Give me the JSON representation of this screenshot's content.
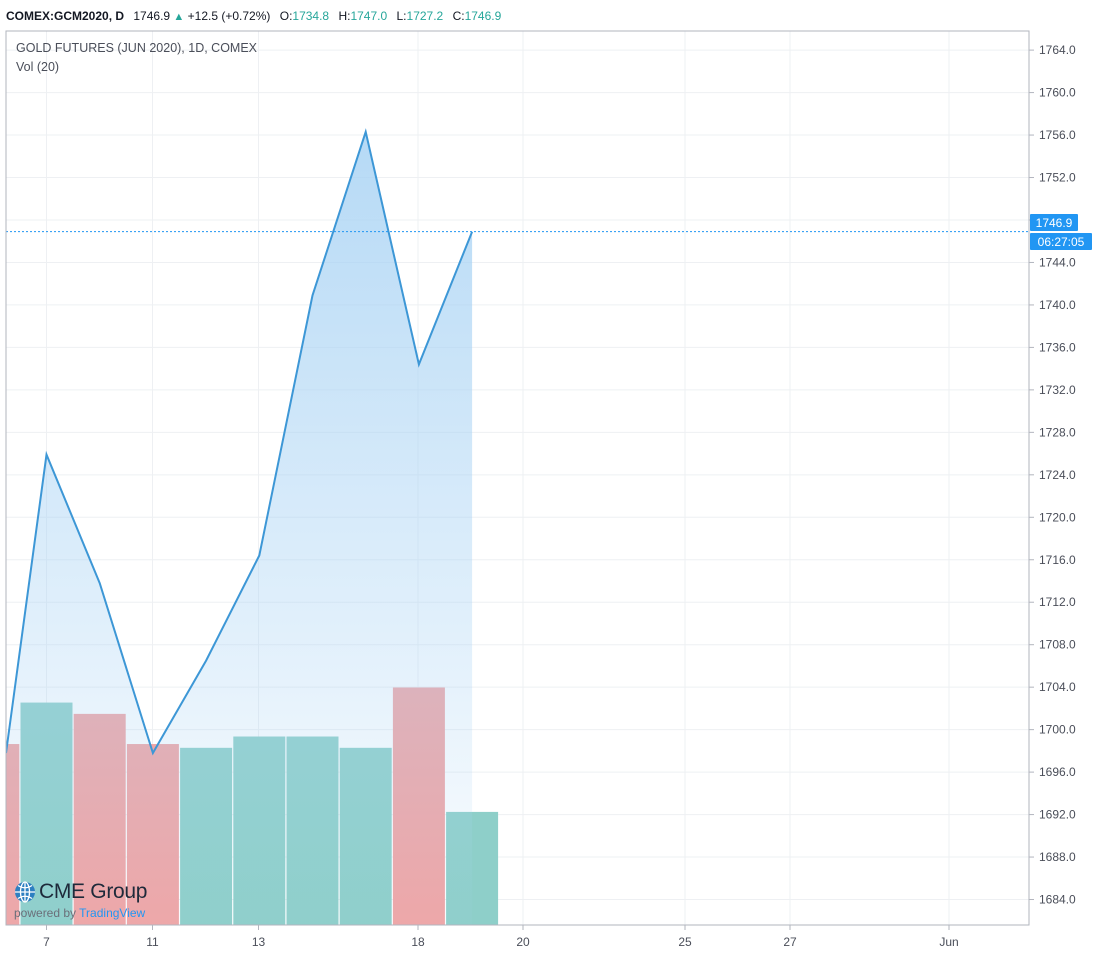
{
  "header": {
    "symbol": "COMEX:GCM2020, D",
    "last": "1746.9",
    "change": "+12.5 (+0.72%)",
    "open_label": "O:",
    "open": "1734.8",
    "high_label": "H:",
    "high": "1747.0",
    "low_label": "L:",
    "low": "1727.2",
    "close_label": "C:",
    "close": "1746.9",
    "up_color": "#26a69a"
  },
  "legend": {
    "title": "GOLD FUTURES (JUN 2020), 1D, COMEX",
    "volume": "Vol (20)"
  },
  "price_badge": {
    "value": "1746.9",
    "countdown": "06:27:05",
    "color": "#2196f3"
  },
  "brand": {
    "name": "CME Group",
    "powered_by": "powered by",
    "platform": "TradingView"
  },
  "chart_data": {
    "type": "area",
    "title": "GOLD FUTURES (JUN 2020), 1D, COMEX",
    "ylim": [
      1681.6,
      1765.8
    ],
    "y_ticks": [
      "1764.0",
      "1760.0",
      "1756.0",
      "1752.0",
      "1748.0",
      "1744.0",
      "1740.0",
      "1736.0",
      "1732.0",
      "1728.0",
      "1724.0",
      "1720.0",
      "1716.0",
      "1712.0",
      "1708.0",
      "1704.0",
      "1700.0",
      "1696.0",
      "1692.0",
      "1688.0",
      "1684.0"
    ],
    "x_ticks": [
      {
        "label": "7",
        "day": 7
      },
      {
        "label": "11",
        "day": 11
      },
      {
        "label": "13",
        "day": 13
      },
      {
        "label": "18",
        "day": 18
      },
      {
        "label": "20",
        "day": 20
      },
      {
        "label": "25",
        "day": 25
      },
      {
        "label": "27",
        "day": 27
      },
      {
        "label": "Jun",
        "day": 32
      }
    ],
    "series": [
      {
        "values": [
          {
            "day": 6,
            "close": 1697.8
          },
          {
            "day": 7,
            "close": 1725.9
          },
          {
            "day": 8,
            "close": 1713.8
          },
          {
            "day": 11,
            "close": 1697.8
          },
          {
            "day": 12,
            "close": 1706.5
          },
          {
            "day": 13,
            "close": 1716.4
          },
          {
            "day": 14,
            "close": 1740.9
          },
          {
            "day": 15,
            "close": 1756.3
          },
          {
            "day": 18,
            "close": 1734.4
          },
          {
            "day": 19,
            "close": 1746.9
          }
        ]
      }
    ],
    "volume": [
      {
        "day": 6,
        "level": 0.48,
        "direction": "down"
      },
      {
        "day": 7,
        "level": 0.59,
        "direction": "up"
      },
      {
        "day": 8,
        "level": 0.56,
        "direction": "down"
      },
      {
        "day": 11,
        "level": 0.48,
        "direction": "down"
      },
      {
        "day": 12,
        "level": 0.47,
        "direction": "up"
      },
      {
        "day": 13,
        "level": 0.5,
        "direction": "up"
      },
      {
        "day": 14,
        "level": 0.5,
        "direction": "up"
      },
      {
        "day": 15,
        "level": 0.47,
        "direction": "up"
      },
      {
        "day": 18,
        "level": 0.63,
        "direction": "down"
      },
      {
        "day": 19,
        "level": 0.3,
        "direction": "up"
      }
    ],
    "last_price": 1746.9,
    "colors": {
      "line": "#3d97d6",
      "area_top": "#a9d3f4",
      "volume_up": "#8ecfc9",
      "volume_down": "#f1a5a5",
      "grid": "#eef0f3"
    },
    "grid": true
  }
}
